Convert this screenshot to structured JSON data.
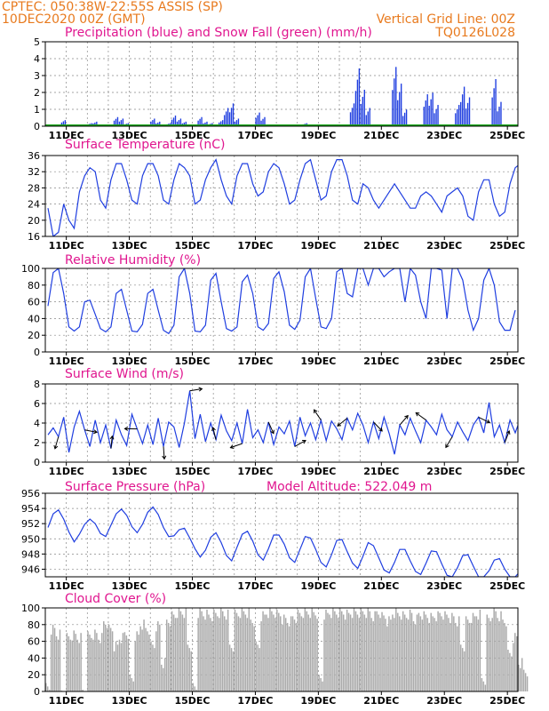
{
  "header": {
    "line1": "CPTEC:   050:38W-22:55S   ASSIS (SP)",
    "line2_left": "10DEC2020 00Z (GMT)",
    "line2_right": "Vertical Grid Line: 00Z",
    "code": "TQ0126L028"
  },
  "colors": {
    "header_text": "#e87a1e",
    "panel_title": "#e0168f",
    "line_blue": "#1f3ee0",
    "snow_green": "#1aa51a",
    "cloud_gray": "#aaaaaa"
  },
  "x_ticks": [
    "11DEC",
    "13DEC",
    "15DEC",
    "17DEC",
    "19DEC",
    "21DEC",
    "23DEC",
    "25DEC"
  ],
  "chart_data": [
    {
      "type": "bar",
      "title": "Precipitation (blue) and Snow Fall (green) (mm/h)",
      "ylim": [
        0,
        5
      ],
      "yticks": [
        0,
        1,
        2,
        3,
        4,
        5
      ],
      "step_hours": 6,
      "series": [
        {
          "values": [
            0,
            0,
            0,
            0.4,
            0,
            0,
            0,
            0,
            0.2,
            0.3,
            0,
            0,
            0,
            0.6,
            0.5,
            0.2,
            0,
            0,
            0,
            0,
            0.5,
            0.3,
            0,
            0.2,
            0.7,
            0.5,
            0.3,
            0,
            0,
            0.6,
            0.3,
            0.2,
            0,
            0.4,
            1.2,
            1.5,
            0.5,
            0,
            0,
            0,
            0.9,
            0.6,
            0,
            0.1,
            0,
            0,
            0,
            0,
            0,
            0.2,
            0,
            0,
            0,
            0.1,
            0,
            0,
            0,
            0,
            1.5,
            3.8,
            2.4,
            1.2,
            0,
            0,
            0,
            0,
            3.9,
            2.8,
            1.1,
            0,
            0,
            0,
            2.1,
            2.2,
            1.4,
            0,
            0,
            0,
            1.4,
            2.6,
            1.9,
            0,
            0,
            0,
            0,
            3.1,
            1.6,
            0,
            0
          ]
        },
        {
          "values": [
            0
          ]
        }
      ]
    },
    {
      "type": "line",
      "title": "Surface Temperature (nC)",
      "ylim": [
        16,
        36
      ],
      "yticks": [
        16,
        20,
        24,
        28,
        32,
        36
      ],
      "step_hours": 6,
      "series": [
        {
          "values": [
            23,
            16,
            17,
            24,
            20,
            18,
            27,
            31,
            33,
            32,
            25,
            23,
            30,
            34,
            34,
            30,
            25,
            24,
            31,
            34,
            34,
            31,
            25,
            24,
            30,
            34,
            33,
            31,
            24,
            25,
            30,
            33,
            35,
            30,
            26,
            24,
            31,
            34,
            34,
            29,
            26,
            27,
            32,
            34,
            33,
            29,
            24,
            25,
            30,
            34,
            35,
            30,
            25,
            26,
            32,
            35,
            35,
            31,
            25,
            24,
            29,
            28,
            25,
            23,
            25,
            27,
            29,
            27,
            25,
            23,
            23,
            26,
            27,
            26,
            24,
            22,
            26,
            27,
            28,
            26,
            21,
            20,
            27,
            30,
            30,
            24,
            21,
            22,
            29,
            33,
            34,
            28
          ]
        }
      ]
    },
    {
      "type": "line",
      "title": "Relative Humidity (%)",
      "ylim": [
        0,
        100
      ],
      "yticks": [
        0,
        20,
        40,
        60,
        80,
        100
      ],
      "step_hours": 6,
      "series": [
        {
          "values": [
            55,
            95,
            100,
            70,
            30,
            25,
            30,
            60,
            62,
            45,
            28,
            24,
            30,
            70,
            75,
            50,
            25,
            24,
            33,
            70,
            75,
            50,
            26,
            22,
            32,
            90,
            100,
            70,
            25,
            24,
            32,
            86,
            94,
            60,
            28,
            25,
            30,
            84,
            92,
            70,
            30,
            26,
            34,
            88,
            96,
            72,
            32,
            27,
            38,
            90,
            100,
            64,
            30,
            28,
            40,
            96,
            100,
            70,
            66,
            100,
            100,
            80,
            100,
            100,
            90,
            96,
            100,
            100,
            60,
            100,
            92,
            60,
            40,
            100,
            100,
            98,
            40,
            100,
            100,
            86,
            50,
            26,
            40,
            86,
            100,
            80,
            36,
            26,
            26,
            50
          ]
        }
      ]
    },
    {
      "type": "line",
      "title": "Surface Wind (m/s)",
      "ylim": [
        0,
        8
      ],
      "yticks": [
        0,
        2,
        4,
        6,
        8
      ],
      "step_hours": 6,
      "series": [
        {
          "values": [
            2.8,
            3.5,
            2.6,
            4.6,
            1.0,
            3.6,
            5.2,
            3.3,
            1.6,
            4.3,
            2.0,
            3.8,
            1.4,
            4.3,
            2.8,
            1.7,
            4.9,
            3.4,
            1.9,
            3.8,
            1.8,
            4.5,
            1.6,
            4.1,
            3.6,
            1.5,
            4.0,
            7.3,
            2.4,
            4.9,
            2.1,
            4.0,
            2.3,
            4.8,
            3.2,
            2.2,
            4.0,
            1.9,
            5.4,
            2.5,
            3.3,
            2.0,
            4.1,
            1.8,
            3.6,
            2.9,
            4.2,
            1.6,
            4.6,
            2.7,
            4.0,
            2.3,
            4.3,
            2.2,
            4.2,
            3.4,
            2.3,
            4.5,
            3.3,
            5.0,
            3.8,
            2.0,
            4.1,
            2.4,
            4.6,
            2.9,
            0.8,
            3.8,
            2.8,
            4.5,
            3.2,
            2.0,
            4.3,
            3.6,
            2.8,
            4.9,
            3.3,
            2.6,
            4.1,
            3.1,
            2.2,
            3.8,
            4.6,
            3.0,
            6.1,
            2.6,
            3.8,
            2.0,
            4.3,
            3.0,
            4.5
          ]
        },
        {
          "name": "",
          "note": ""
        }
      ]
    },
    {
      "type": "line",
      "title": "Surface Pressure (hPa)",
      "annotation": "Model Altitude: 522.049  m",
      "ylim": [
        945,
        956
      ],
      "yticks": [
        946,
        948,
        950,
        952,
        954,
        956
      ],
      "step_hours": 6,
      "series": [
        {
          "values": [
            951.5,
            953.3,
            953.8,
            952.6,
            950.9,
            949.6,
            950.6,
            951.9,
            952.6,
            952.0,
            950.7,
            950.3,
            951.8,
            953.3,
            953.9,
            953.1,
            951.6,
            950.8,
            951.9,
            953.5,
            954.2,
            953.2,
            951.5,
            950.3,
            950.4,
            951.2,
            951.4,
            950.1,
            948.7,
            947.6,
            948.5,
            950.2,
            950.8,
            949.5,
            947.8,
            947.1,
            948.9,
            950.6,
            951.0,
            949.7,
            947.9,
            947.2,
            948.7,
            950.5,
            950.5,
            949.3,
            947.5,
            946.9,
            948.6,
            950.3,
            950.1,
            948.6,
            946.9,
            946.3,
            947.9,
            949.8,
            949.9,
            948.3,
            946.8,
            946.1,
            947.7,
            949.5,
            949.1,
            947.5,
            945.9,
            945.5,
            946.9,
            948.6,
            948.6,
            947.1,
            945.7,
            945.3,
            946.8,
            948.4,
            948.3,
            946.7,
            945.2,
            944.8,
            946.2,
            947.8,
            947.9,
            946.4,
            944.9,
            944.6,
            945.8,
            947.2,
            947.4,
            946.0,
            944.6,
            944.3,
            945.8,
            947.4
          ]
        }
      ]
    },
    {
      "type": "bar",
      "title": "Cloud Cover (%)",
      "ylim": [
        0,
        100
      ],
      "yticks": [
        0,
        20,
        40,
        60,
        80,
        100
      ],
      "step_hours": 6,
      "series": [
        {
          "values": [
            10,
            80,
            74,
            5,
            70,
            73,
            70,
            6,
            72,
            74,
            70,
            88,
            80,
            60,
            70,
            75,
            20,
            72,
            86,
            80,
            60,
            84,
            40,
            90,
            96,
            100,
            100,
            60,
            10,
            100,
            98,
            96,
            98,
            100,
            98,
            60,
            98,
            100,
            100,
            90,
            60,
            96,
            100,
            100,
            98,
            92,
            90,
            94,
            98,
            100,
            100,
            99,
            20,
            98,
            100,
            100,
            100,
            98,
            100,
            100,
            100,
            100,
            96,
            100,
            95,
            90,
            100,
            98,
            96,
            98,
            92,
            98,
            96,
            94,
            96,
            98,
            96,
            94,
            90,
            60,
            90,
            94,
            98,
            20,
            92,
            100,
            96,
            90,
            50,
            70,
            40,
            30
          ]
        }
      ]
    }
  ]
}
